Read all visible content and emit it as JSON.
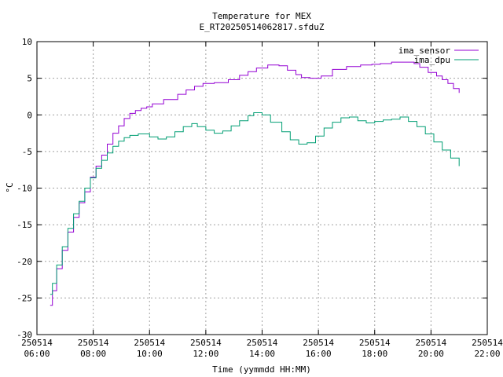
{
  "chart_data": {
    "type": "line",
    "title": "Temperature for MEX",
    "subtitle": "E_RT20250514062817.sfduZ",
    "xlabel": "Time (yymmdd HH:MM)",
    "ylabel": "°C",
    "ylim": [
      -30,
      10
    ],
    "xlim": [
      6,
      22
    ],
    "grid": true,
    "legend": "top-right",
    "x_ticks": [
      {
        "x": 6,
        "date": "250514",
        "time": "06:00"
      },
      {
        "x": 8,
        "date": "250514",
        "time": "08:00"
      },
      {
        "x": 10,
        "date": "250514",
        "time": "10:00"
      },
      {
        "x": 12,
        "date": "250514",
        "time": "12:00"
      },
      {
        "x": 14,
        "date": "250514",
        "time": "14:00"
      },
      {
        "x": 16,
        "date": "250514",
        "time": "16:00"
      },
      {
        "x": 18,
        "date": "250514",
        "time": "18:00"
      },
      {
        "x": 20,
        "date": "250514",
        "time": "20:00"
      },
      {
        "x": 22,
        "date": "250514",
        "time": "22:00"
      }
    ],
    "y_ticks": [
      10,
      5,
      0,
      -5,
      -10,
      -15,
      -20,
      -25,
      -30
    ],
    "series": [
      {
        "name": "ima_sensor",
        "color": "#9400d3",
        "x": [
          6.47,
          6.55,
          6.7,
          6.9,
          7.1,
          7.3,
          7.5,
          7.7,
          7.9,
          8.1,
          8.3,
          8.5,
          8.7,
          8.9,
          9.1,
          9.3,
          9.5,
          9.7,
          9.9,
          10.1,
          10.5,
          11.0,
          11.3,
          11.6,
          11.9,
          12.3,
          12.8,
          13.2,
          13.5,
          13.8,
          14.2,
          14.6,
          14.9,
          15.2,
          15.4,
          15.7,
          16.1,
          16.5,
          17.0,
          17.5,
          17.9,
          18.2,
          18.6,
          19.0,
          19.4,
          19.6,
          19.9,
          20.2,
          20.4,
          20.6,
          20.8,
          21.0
        ],
        "y": [
          -26,
          -24,
          -21,
          -18.5,
          -16,
          -14,
          -12,
          -10.5,
          -8.5,
          -7,
          -5.5,
          -4,
          -2.5,
          -1.5,
          -0.5,
          0.2,
          0.6,
          0.9,
          1.1,
          1.5,
          2.1,
          2.8,
          3.4,
          3.9,
          4.3,
          4.4,
          4.8,
          5.4,
          5.9,
          6.4,
          6.8,
          6.7,
          6.1,
          5.5,
          5.1,
          5.0,
          5.3,
          6.2,
          6.6,
          6.8,
          6.9,
          7.0,
          7.2,
          7.2,
          7.0,
          6.5,
          5.8,
          5.3,
          4.8,
          4.3,
          3.6,
          3.0
        ]
      },
      {
        "name": "ima_dpu",
        "color": "#009e73",
        "x": [
          6.47,
          6.55,
          6.7,
          6.9,
          7.1,
          7.3,
          7.5,
          7.7,
          7.9,
          8.1,
          8.3,
          8.5,
          8.7,
          8.9,
          9.1,
          9.3,
          9.6,
          10.0,
          10.3,
          10.6,
          10.9,
          11.2,
          11.5,
          11.7,
          12.0,
          12.3,
          12.6,
          12.9,
          13.2,
          13.5,
          13.7,
          14.0,
          14.3,
          14.7,
          15.0,
          15.3,
          15.6,
          15.9,
          16.2,
          16.5,
          16.8,
          17.1,
          17.4,
          17.7,
          18.0,
          18.3,
          18.6,
          18.9,
          19.2,
          19.5,
          19.8,
          20.1,
          20.4,
          20.7,
          21.0
        ],
        "y": [
          -24.5,
          -23,
          -20.5,
          -18,
          -15.5,
          -13.5,
          -11.8,
          -10,
          -8.6,
          -7.3,
          -6.2,
          -5.2,
          -4.3,
          -3.6,
          -3.1,
          -2.8,
          -2.6,
          -3.0,
          -3.3,
          -3.0,
          -2.3,
          -1.6,
          -1.2,
          -1.6,
          -2.1,
          -2.5,
          -2.2,
          -1.5,
          -0.8,
          -0.1,
          0.3,
          0.0,
          -1.0,
          -2.3,
          -3.4,
          -4.0,
          -3.8,
          -2.9,
          -1.8,
          -1.0,
          -0.4,
          -0.3,
          -0.8,
          -1.1,
          -0.9,
          -0.7,
          -0.6,
          -0.3,
          -0.9,
          -1.6,
          -2.6,
          -3.7,
          -4.8,
          -5.9,
          -7.0
        ]
      }
    ]
  }
}
